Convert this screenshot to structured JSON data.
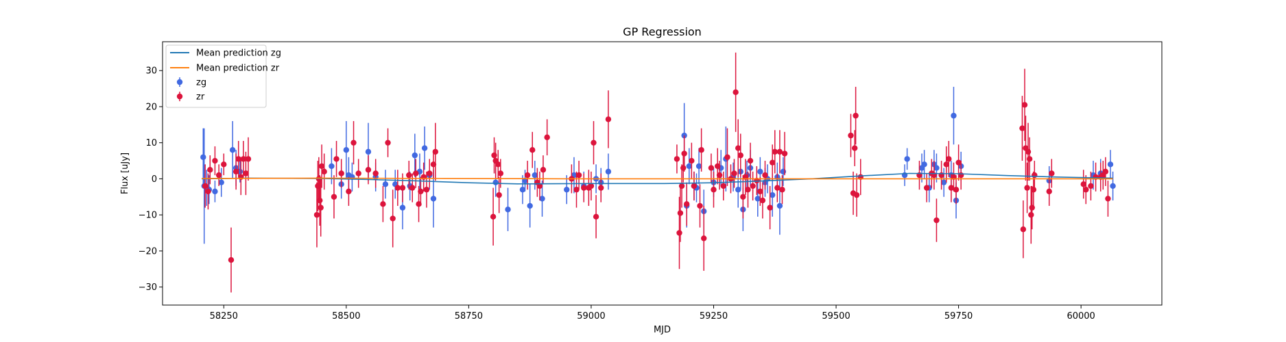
{
  "chart_data": {
    "type": "scatter",
    "title": "GP Regression",
    "xlabel": "MJD",
    "ylabel": "Flux [uJy]",
    "xlim": [
      58125,
      60165
    ],
    "ylim": [
      -35,
      38
    ],
    "xticks": [
      58250,
      58500,
      58750,
      59000,
      59250,
      59500,
      59750,
      60000
    ],
    "yticks": [
      -30,
      -20,
      -10,
      0,
      10,
      20,
      30
    ],
    "grid": false,
    "legend_position": "top-left",
    "legend": [
      "Mean prediction zg",
      "Mean prediction zr",
      "zg",
      "zr"
    ],
    "lines": [
      {
        "name": "Mean prediction zg",
        "color": "#1f77b4",
        "x": [
          58205,
          58300,
          58450,
          58550,
          58650,
          58750,
          58850,
          59000,
          59150,
          59250,
          59350,
          59450,
          59550,
          59650,
          59750,
          59850,
          59950,
          60065
        ],
        "y": [
          0.0,
          0.2,
          0.1,
          -0.2,
          -0.6,
          -1.1,
          -1.4,
          -1.3,
          -1.3,
          -1.1,
          -0.6,
          0.0,
          0.8,
          1.5,
          1.4,
          0.9,
          0.5,
          0.2
        ]
      },
      {
        "name": "Mean prediction zr",
        "color": "#ff7f0e",
        "x": [
          58205,
          58450,
          58700,
          58950,
          59200,
          59450,
          59700,
          59950,
          60065
        ],
        "y": [
          0.1,
          0.2,
          0.1,
          0.0,
          0.0,
          0.0,
          0.0,
          0.0,
          0.0
        ]
      }
    ],
    "series": [
      {
        "name": "zg",
        "color": "#4169e1",
        "points": [
          [
            58208,
            6,
            8
          ],
          [
            58210,
            -2,
            16
          ],
          [
            58215,
            -2.5,
            5
          ],
          [
            58220,
            -3,
            4
          ],
          [
            58232,
            -3.5,
            3
          ],
          [
            58245,
            -1,
            4
          ],
          [
            58268,
            8,
            8
          ],
          [
            58275,
            3,
            5
          ],
          [
            58283,
            2,
            3
          ],
          [
            58470,
            3.5,
            5
          ],
          [
            58490,
            -1.5,
            4
          ],
          [
            58500,
            8,
            8
          ],
          [
            58505,
            1,
            5
          ],
          [
            58512,
            0.5,
            4
          ],
          [
            58545,
            7.5,
            8
          ],
          [
            58560,
            0.5,
            4
          ],
          [
            58580,
            -1.5,
            4
          ],
          [
            58600,
            -1.5,
            4
          ],
          [
            58615,
            -8,
            6
          ],
          [
            58630,
            -2,
            4
          ],
          [
            58640,
            6.5,
            6
          ],
          [
            58650,
            2,
            5
          ],
          [
            58660,
            8.5,
            6
          ],
          [
            58670,
            1,
            4
          ],
          [
            58678,
            -5.5,
            8
          ],
          [
            58805,
            -1,
            4
          ],
          [
            58830,
            -8.5,
            6
          ],
          [
            58860,
            -3,
            4
          ],
          [
            58865,
            -0.5,
            3
          ],
          [
            58875,
            -7.5,
            6
          ],
          [
            58885,
            1,
            4
          ],
          [
            58900,
            -5.5,
            5
          ],
          [
            58950,
            -3,
            4
          ],
          [
            58965,
            1,
            5
          ],
          [
            58985,
            -2,
            4
          ],
          [
            59010,
            0,
            4
          ],
          [
            59020,
            -1,
            4
          ],
          [
            59035,
            2,
            5
          ],
          [
            59190,
            12,
            9
          ],
          [
            59195,
            -7.5,
            6
          ],
          [
            59200,
            3.5,
            5
          ],
          [
            59210,
            -2,
            4
          ],
          [
            59215,
            -2.5,
            4
          ],
          [
            59220,
            3.5,
            5
          ],
          [
            59230,
            -9,
            6
          ],
          [
            59250,
            -1,
            4
          ],
          [
            59265,
            3,
            5
          ],
          [
            59275,
            5.5,
            9
          ],
          [
            59290,
            0.5,
            4
          ],
          [
            59300,
            -3,
            5
          ],
          [
            59305,
            2,
            5
          ],
          [
            59310,
            -8.5,
            6
          ],
          [
            59318,
            1,
            4
          ],
          [
            59325,
            3,
            5
          ],
          [
            59340,
            -5.5,
            5
          ],
          [
            59345,
            2,
            4
          ],
          [
            59355,
            -1,
            4
          ],
          [
            59360,
            0,
            4
          ],
          [
            59370,
            -4.5,
            6
          ],
          [
            59380,
            0.5,
            4
          ],
          [
            59385,
            -7.5,
            8
          ],
          [
            59392,
            2,
            4
          ],
          [
            59640,
            1,
            3
          ],
          [
            59645,
            5.5,
            3
          ],
          [
            59675,
            3,
            4
          ],
          [
            59680,
            4,
            4
          ],
          [
            59690,
            -2.5,
            4
          ],
          [
            59700,
            4,
            4
          ],
          [
            59705,
            3,
            4
          ],
          [
            59720,
            -1,
            4
          ],
          [
            59735,
            1,
            4
          ],
          [
            59740,
            17.5,
            8
          ],
          [
            59745,
            -6,
            5
          ],
          [
            59755,
            3.5,
            4
          ],
          [
            59935,
            -0.5,
            4
          ],
          [
            60025,
            1,
            4
          ],
          [
            60040,
            1.5,
            4
          ],
          [
            60060,
            4,
            4
          ],
          [
            60065,
            -2,
            4
          ]
        ]
      },
      {
        "name": "zr",
        "color": "#dc143c",
        "points": [
          [
            58212,
            -2,
            6
          ],
          [
            58218,
            -3.5,
            5
          ],
          [
            58222,
            2.5,
            4
          ],
          [
            58232,
            5,
            4
          ],
          [
            58240,
            1,
            3
          ],
          [
            58250,
            4,
            3
          ],
          [
            58265,
            -22.5,
            9
          ],
          [
            58275,
            2,
            5
          ],
          [
            58280,
            5.5,
            5
          ],
          [
            58285,
            0.5,
            5
          ],
          [
            58290,
            5.5,
            5
          ],
          [
            58295,
            1.5,
            6
          ],
          [
            58300,
            5.5,
            6
          ],
          [
            58440,
            -10,
            9
          ],
          [
            58442,
            -2,
            7
          ],
          [
            58444,
            0,
            6
          ],
          [
            58446,
            -6,
            7
          ],
          [
            58448,
            -8,
            8
          ],
          [
            58450,
            3.5,
            6
          ],
          [
            58455,
            2,
            5
          ],
          [
            58475,
            -5,
            6
          ],
          [
            58480,
            5.5,
            5
          ],
          [
            58490,
            1.5,
            4
          ],
          [
            58505,
            -3.5,
            4
          ],
          [
            58515,
            10,
            6
          ],
          [
            58525,
            1.5,
            4
          ],
          [
            58545,
            2.5,
            4
          ],
          [
            58560,
            1.5,
            4
          ],
          [
            58575,
            -7,
            5
          ],
          [
            58585,
            10,
            4
          ],
          [
            58595,
            -11,
            8
          ],
          [
            58605,
            -2.5,
            5
          ],
          [
            58615,
            -2.5,
            4
          ],
          [
            58628,
            1,
            4
          ],
          [
            58635,
            -2.5,
            4
          ],
          [
            58642,
            1.5,
            4
          ],
          [
            58648,
            -7,
            5
          ],
          [
            58652,
            -3.5,
            4
          ],
          [
            58658,
            0.5,
            4
          ],
          [
            58664,
            -3,
            5
          ],
          [
            58670,
            1.5,
            4
          ],
          [
            58678,
            4,
            4
          ],
          [
            58682,
            7.5,
            8
          ],
          [
            58800,
            -10.5,
            8
          ],
          [
            58802,
            6.5,
            5
          ],
          [
            58805,
            5,
            5
          ],
          [
            58810,
            4,
            4
          ],
          [
            58815,
            1.5,
            4
          ],
          [
            58812,
            -4.5,
            5
          ],
          [
            58870,
            1,
            4
          ],
          [
            58880,
            8,
            5
          ],
          [
            58890,
            -1,
            4
          ],
          [
            58895,
            -2,
            4
          ],
          [
            58902,
            2.5,
            4
          ],
          [
            58910,
            11.5,
            5
          ],
          [
            58960,
            0,
            4
          ],
          [
            58970,
            -3,
            5
          ],
          [
            58975,
            1,
            4
          ],
          [
            58985,
            -2.5,
            4
          ],
          [
            58995,
            -2.5,
            5
          ],
          [
            59000,
            -2,
            4
          ],
          [
            59005,
            10,
            6
          ],
          [
            59010,
            -10.5,
            6
          ],
          [
            59020,
            -2.5,
            4
          ],
          [
            59035,
            16.5,
            8
          ],
          [
            59175,
            5.5,
            4
          ],
          [
            59180,
            -15,
            10
          ],
          [
            59182,
            -9.5,
            8
          ],
          [
            59185,
            -2,
            6
          ],
          [
            59188,
            3,
            4
          ],
          [
            59190,
            7,
            5
          ],
          [
            59195,
            -7,
            6
          ],
          [
            59205,
            5,
            5
          ],
          [
            59210,
            -2,
            4
          ],
          [
            59222,
            -7.5,
            6
          ],
          [
            59225,
            8,
            6
          ],
          [
            59230,
            -16.5,
            9
          ],
          [
            59245,
            3,
            4
          ],
          [
            59250,
            -3,
            5
          ],
          [
            59258,
            3.5,
            5
          ],
          [
            59262,
            1,
            4
          ],
          [
            59270,
            -2,
            4
          ],
          [
            59278,
            6,
            8
          ],
          [
            59285,
            0,
            4
          ],
          [
            59292,
            1.5,
            4
          ],
          [
            59295,
            24,
            11
          ],
          [
            59300,
            8.5,
            8
          ],
          [
            59305,
            6.5,
            6
          ],
          [
            59310,
            -5,
            6
          ],
          [
            59315,
            0.5,
            5
          ],
          [
            59320,
            -3,
            5
          ],
          [
            59325,
            5,
            5
          ],
          [
            59330,
            -2,
            4
          ],
          [
            59338,
            -0.5,
            4
          ],
          [
            59345,
            -3.5,
            4
          ],
          [
            59350,
            -6,
            5
          ],
          [
            59355,
            1,
            4
          ],
          [
            59365,
            -8,
            6
          ],
          [
            59370,
            4.5,
            5
          ],
          [
            59375,
            7.5,
            6
          ],
          [
            59380,
            -2.5,
            4
          ],
          [
            59385,
            7.5,
            6
          ],
          [
            59390,
            -3,
            4
          ],
          [
            59395,
            7,
            6
          ],
          [
            59530,
            12,
            6
          ],
          [
            59535,
            -4,
            6
          ],
          [
            59538,
            8.5,
            5
          ],
          [
            59540,
            17.5,
            8
          ],
          [
            59542,
            -4.5,
            6
          ],
          [
            59550,
            0.5,
            5
          ],
          [
            59670,
            1,
            4
          ],
          [
            59685,
            -2.5,
            4
          ],
          [
            59695,
            1.5,
            4
          ],
          [
            59700,
            1,
            4
          ],
          [
            59705,
            -11.5,
            6
          ],
          [
            59715,
            1,
            4
          ],
          [
            59725,
            4,
            5
          ],
          [
            59730,
            5.5,
            5
          ],
          [
            59735,
            -2.5,
            4
          ],
          [
            59740,
            0.5,
            4
          ],
          [
            59745,
            -3,
            4
          ],
          [
            59750,
            4.5,
            5
          ],
          [
            59755,
            1,
            4
          ],
          [
            59880,
            14,
            9
          ],
          [
            59882,
            -14,
            8
          ],
          [
            59885,
            20.5,
            10
          ],
          [
            59887,
            8.5,
            9
          ],
          [
            59890,
            -2.5,
            7
          ],
          [
            59892,
            7.5,
            8
          ],
          [
            59895,
            5.5,
            6
          ],
          [
            59898,
            -10,
            8
          ],
          [
            59900,
            -8,
            6
          ],
          [
            59903,
            -3,
            5
          ],
          [
            59905,
            1,
            4
          ],
          [
            59935,
            -3.5,
            4
          ],
          [
            59940,
            1.5,
            4
          ],
          [
            60005,
            -1.5,
            4
          ],
          [
            60010,
            -3,
            4
          ],
          [
            60020,
            -2,
            4
          ],
          [
            60030,
            0.5,
            4
          ],
          [
            60040,
            0.5,
            4
          ],
          [
            60045,
            1,
            4
          ],
          [
            60050,
            2,
            4
          ],
          [
            60055,
            -5.5,
            5
          ]
        ]
      }
    ]
  }
}
